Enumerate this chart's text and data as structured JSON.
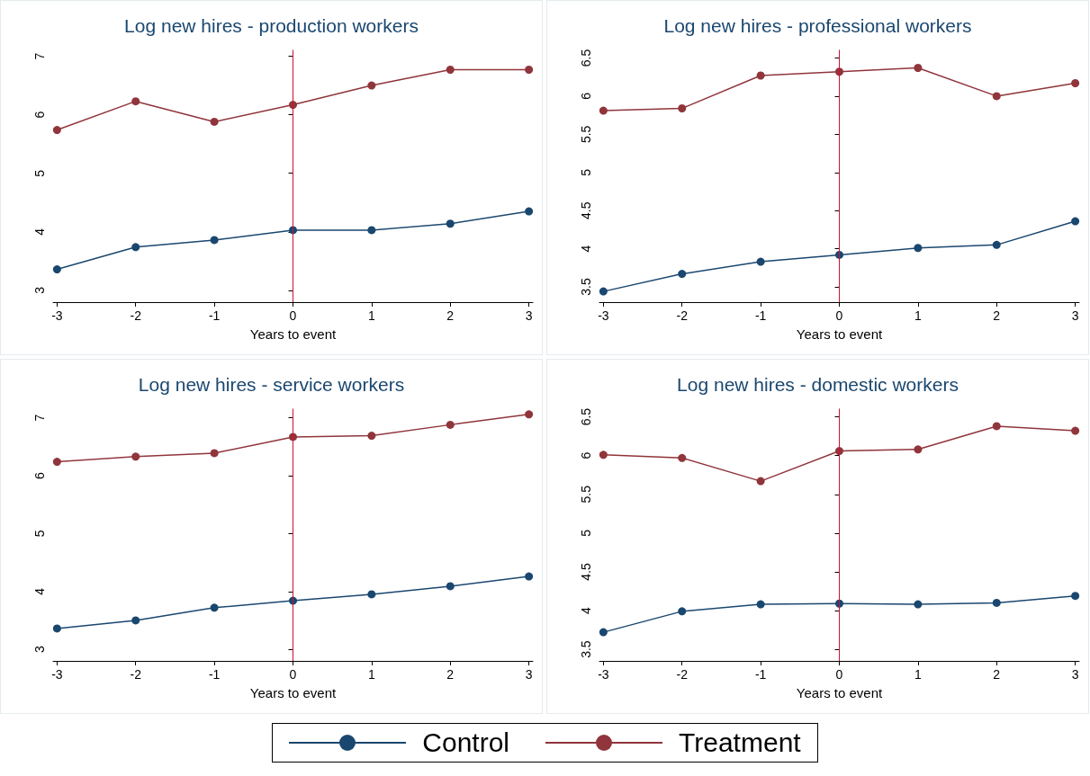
{
  "chart_data": [
    {
      "type": "line",
      "title": "Log new hires - production workers",
      "xlabel": "Years to event",
      "x": [
        -3,
        -2,
        -1,
        0,
        1,
        2,
        3
      ],
      "xlim": [
        -3.05,
        3.05
      ],
      "xticks": [
        -3,
        -2,
        -1,
        0,
        1,
        2,
        3
      ],
      "ylim": [
        2.8,
        7.1
      ],
      "yticks": [
        3,
        4,
        5,
        6,
        7
      ],
      "grid": false,
      "marker": "circle",
      "legend": "bottom",
      "ref_lines": [
        {
          "axis": "x",
          "value": 0,
          "color": "#d0103a"
        }
      ],
      "series": [
        {
          "name": "Control",
          "color": "#1a476f",
          "values": [
            3.36,
            3.74,
            3.86,
            4.03,
            4.03,
            4.14,
            4.35
          ]
        },
        {
          "name": "Treatment",
          "color": "#90353b",
          "values": [
            5.74,
            6.23,
            5.88,
            6.17,
            6.5,
            6.77,
            6.77
          ]
        }
      ]
    },
    {
      "type": "line",
      "title": "Log new hires - professional workers",
      "xlabel": "Years to event",
      "x": [
        -3,
        -2,
        -1,
        0,
        1,
        2,
        3
      ],
      "xlim": [
        -3.05,
        3.05
      ],
      "xticks": [
        -3,
        -2,
        -1,
        0,
        1,
        2,
        3
      ],
      "ylim": [
        3.3,
        6.6
      ],
      "yticks": [
        3.5,
        4,
        4.5,
        5,
        5.5,
        6,
        6.5
      ],
      "grid": false,
      "marker": "circle",
      "legend": "bottom",
      "ref_lines": [
        {
          "axis": "x",
          "value": 0,
          "color": "#d0103a"
        }
      ],
      "series": [
        {
          "name": "Control",
          "color": "#1a476f",
          "values": [
            3.44,
            3.67,
            3.83,
            3.92,
            4.01,
            4.05,
            4.36
          ]
        },
        {
          "name": "Treatment",
          "color": "#90353b",
          "values": [
            5.81,
            5.84,
            6.27,
            6.32,
            6.37,
            6.0,
            6.17
          ]
        }
      ]
    },
    {
      "type": "line",
      "title": "Log new hires - service workers",
      "xlabel": "Years to event",
      "x": [
        -3,
        -2,
        -1,
        0,
        1,
        2,
        3
      ],
      "xlim": [
        -3.05,
        3.05
      ],
      "xticks": [
        -3,
        -2,
        -1,
        0,
        1,
        2,
        3
      ],
      "ylim": [
        2.8,
        7.15
      ],
      "yticks": [
        3,
        4,
        5,
        6,
        7
      ],
      "grid": false,
      "marker": "circle",
      "legend": "bottom",
      "ref_lines": [
        {
          "axis": "x",
          "value": 0,
          "color": "#d0103a"
        }
      ],
      "series": [
        {
          "name": "Control",
          "color": "#1a476f",
          "values": [
            3.36,
            3.5,
            3.72,
            3.84,
            3.95,
            4.09,
            4.26
          ]
        },
        {
          "name": "Treatment",
          "color": "#90353b",
          "values": [
            6.24,
            6.33,
            6.39,
            6.67,
            6.69,
            6.88,
            7.06
          ]
        }
      ]
    },
    {
      "type": "line",
      "title": "Log new hires - domestic workers",
      "xlabel": "Years to event",
      "x": [
        -3,
        -2,
        -1,
        0,
        1,
        2,
        3
      ],
      "xlim": [
        -3.05,
        3.05
      ],
      "xticks": [
        -3,
        -2,
        -1,
        0,
        1,
        2,
        3
      ],
      "ylim": [
        3.35,
        6.6
      ],
      "yticks": [
        3.5,
        4,
        4.5,
        5,
        5.5,
        6,
        6.5
      ],
      "grid": false,
      "marker": "circle",
      "legend": "bottom",
      "ref_lines": [
        {
          "axis": "x",
          "value": 0,
          "color": "#d0103a"
        }
      ],
      "series": [
        {
          "name": "Control",
          "color": "#1a476f",
          "values": [
            3.72,
            3.99,
            4.08,
            4.09,
            4.08,
            4.1,
            4.19
          ]
        },
        {
          "name": "Treatment",
          "color": "#90353b",
          "values": [
            6.01,
            5.97,
            5.67,
            6.06,
            6.08,
            6.38,
            6.32
          ]
        }
      ]
    }
  ]
}
